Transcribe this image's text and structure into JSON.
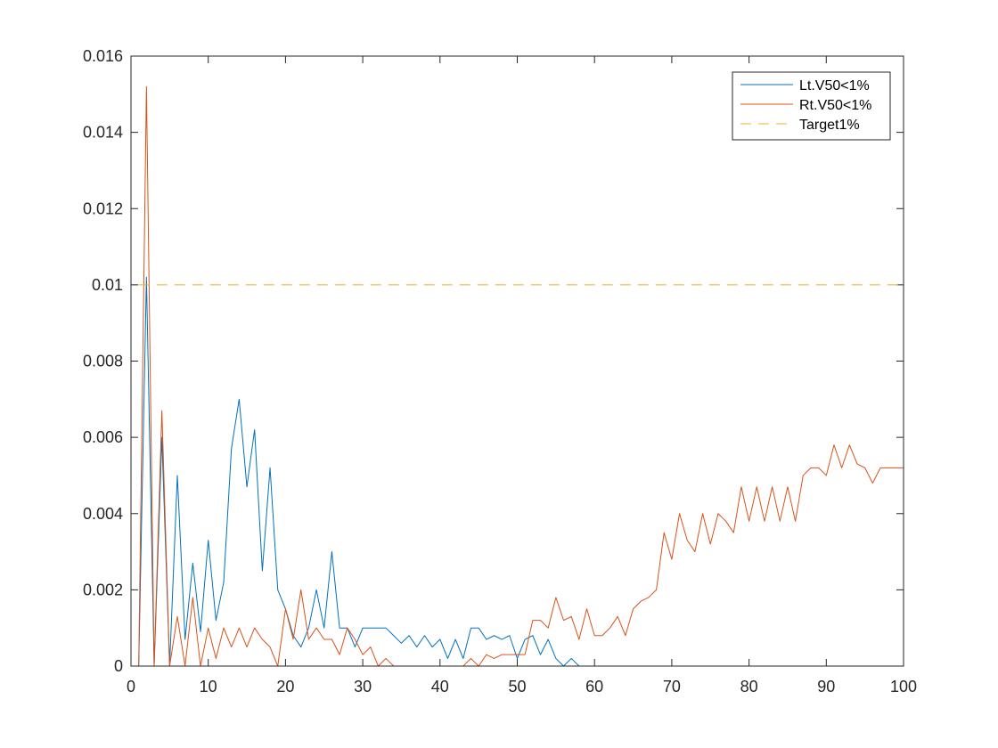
{
  "chart_data": {
    "type": "line",
    "title": "",
    "xlabel": "",
    "ylabel": "",
    "xlim": [
      0,
      100
    ],
    "ylim": [
      0,
      0.016
    ],
    "x_ticks": [
      "0",
      "10",
      "20",
      "30",
      "40",
      "50",
      "60",
      "70",
      "80",
      "90",
      "100"
    ],
    "y_ticks": [
      "0",
      "0.002",
      "0.004",
      "0.006",
      "0.008",
      "0.01",
      "0.012",
      "0.014",
      "0.016"
    ],
    "grid": false,
    "legend_position": "top-right",
    "series": [
      {
        "name": "Lt.V50<1%",
        "color": "#0072BD",
        "style": "solid",
        "x": [
          1,
          2,
          3,
          4,
          5,
          6,
          7,
          8,
          9,
          10,
          11,
          12,
          13,
          14,
          15,
          16,
          17,
          18,
          19,
          20,
          21,
          22,
          23,
          24,
          25,
          26,
          27,
          28,
          29,
          30,
          31,
          32,
          33,
          34,
          35,
          36,
          37,
          38,
          39,
          40,
          41,
          42,
          43,
          44,
          45,
          46,
          47,
          48,
          49,
          50,
          51,
          52,
          53,
          54,
          55,
          56,
          57,
          58,
          59,
          60,
          61,
          62,
          63,
          64,
          65,
          66,
          67,
          68,
          69,
          70,
          71,
          72,
          73,
          74,
          75,
          76,
          77,
          78,
          79,
          80,
          81,
          82,
          83,
          84,
          85,
          86,
          87,
          88,
          89,
          90,
          91,
          92,
          93,
          94,
          95,
          96,
          97,
          98,
          99,
          100
        ],
        "values": [
          0,
          0.0102,
          0,
          0.006,
          0,
          0.005,
          0.0007,
          0.0027,
          0.0009,
          0.0033,
          0.0012,
          0.0022,
          0.0057,
          0.007,
          0.0047,
          0.0062,
          0.0025,
          0.0052,
          0.002,
          0.0015,
          0.0008,
          0.0005,
          0.001,
          0.002,
          0.001,
          0.003,
          0.001,
          0.001,
          0.0005,
          0.001,
          0.001,
          0.001,
          0.001,
          0.0008,
          0.0006,
          0.0008,
          0.0005,
          0.0008,
          0.0005,
          0.0007,
          0.0002,
          0.0007,
          0.0002,
          0.001,
          0.001,
          0.0007,
          0.0008,
          0.0007,
          0.0008,
          0.0002,
          0.0007,
          0.0008,
          0.0003,
          0.0007,
          0.0002,
          0,
          0.0002,
          0,
          0,
          0,
          0,
          0,
          0,
          0,
          0,
          0,
          0,
          0,
          0,
          0,
          0,
          0,
          0,
          0,
          0,
          0,
          0,
          0,
          0,
          0,
          0,
          0,
          0,
          0,
          0,
          0,
          0,
          0,
          0,
          0,
          0,
          0,
          0,
          0,
          0,
          0,
          0,
          0,
          0,
          0
        ]
      },
      {
        "name": "Rt.V50<1%",
        "color": "#D95319",
        "style": "solid",
        "x": [
          1,
          2,
          3,
          4,
          5,
          6,
          7,
          8,
          9,
          10,
          11,
          12,
          13,
          14,
          15,
          16,
          17,
          18,
          19,
          20,
          21,
          22,
          23,
          24,
          25,
          26,
          27,
          28,
          29,
          30,
          31,
          32,
          33,
          34,
          35,
          36,
          37,
          38,
          39,
          40,
          41,
          42,
          43,
          44,
          45,
          46,
          47,
          48,
          49,
          50,
          51,
          52,
          53,
          54,
          55,
          56,
          57,
          58,
          59,
          60,
          61,
          62,
          63,
          64,
          65,
          66,
          67,
          68,
          69,
          70,
          71,
          72,
          73,
          74,
          75,
          76,
          77,
          78,
          79,
          80,
          81,
          82,
          83,
          84,
          85,
          86,
          87,
          88,
          89,
          90,
          91,
          92,
          93,
          94,
          95,
          96,
          97,
          98,
          99,
          100
        ],
        "values": [
          0,
          0.0152,
          0,
          0.0067,
          0,
          0.0013,
          0,
          0.0018,
          0,
          0.001,
          0.0002,
          0.001,
          0.0005,
          0.001,
          0.0005,
          0.001,
          0.0007,
          0.0005,
          0,
          0.0015,
          0.0007,
          0.002,
          0.0007,
          0.001,
          0.0007,
          0.0007,
          0.0003,
          0.001,
          0.0007,
          0.0003,
          0.0005,
          0,
          0.0002,
          0,
          0,
          0,
          0,
          0,
          0,
          0,
          0,
          0,
          0,
          0.0002,
          0,
          0.0003,
          0.0002,
          0.0003,
          0.0003,
          0.0003,
          0.0003,
          0.0012,
          0.0012,
          0.001,
          0.0018,
          0.0012,
          0.0013,
          0.0007,
          0.0015,
          0.0008,
          0.0008,
          0.001,
          0.0013,
          0.0008,
          0.0015,
          0.0017,
          0.0018,
          0.002,
          0.0035,
          0.0028,
          0.004,
          0.0033,
          0.003,
          0.004,
          0.0032,
          0.004,
          0.0038,
          0.0035,
          0.0047,
          0.0038,
          0.0047,
          0.0038,
          0.0047,
          0.0038,
          0.0047,
          0.0038,
          0.005,
          0.0052,
          0.0052,
          0.005,
          0.0058,
          0.0052,
          0.0058,
          0.0053,
          0.0052,
          0.0048,
          0.0052,
          0.0052,
          0.0052,
          0.0052
        ]
      },
      {
        "name": "Target1%",
        "color": "#EDB120",
        "style": "dashed",
        "x": [
          1,
          100
        ],
        "values": [
          0.01,
          0.01
        ]
      }
    ]
  }
}
